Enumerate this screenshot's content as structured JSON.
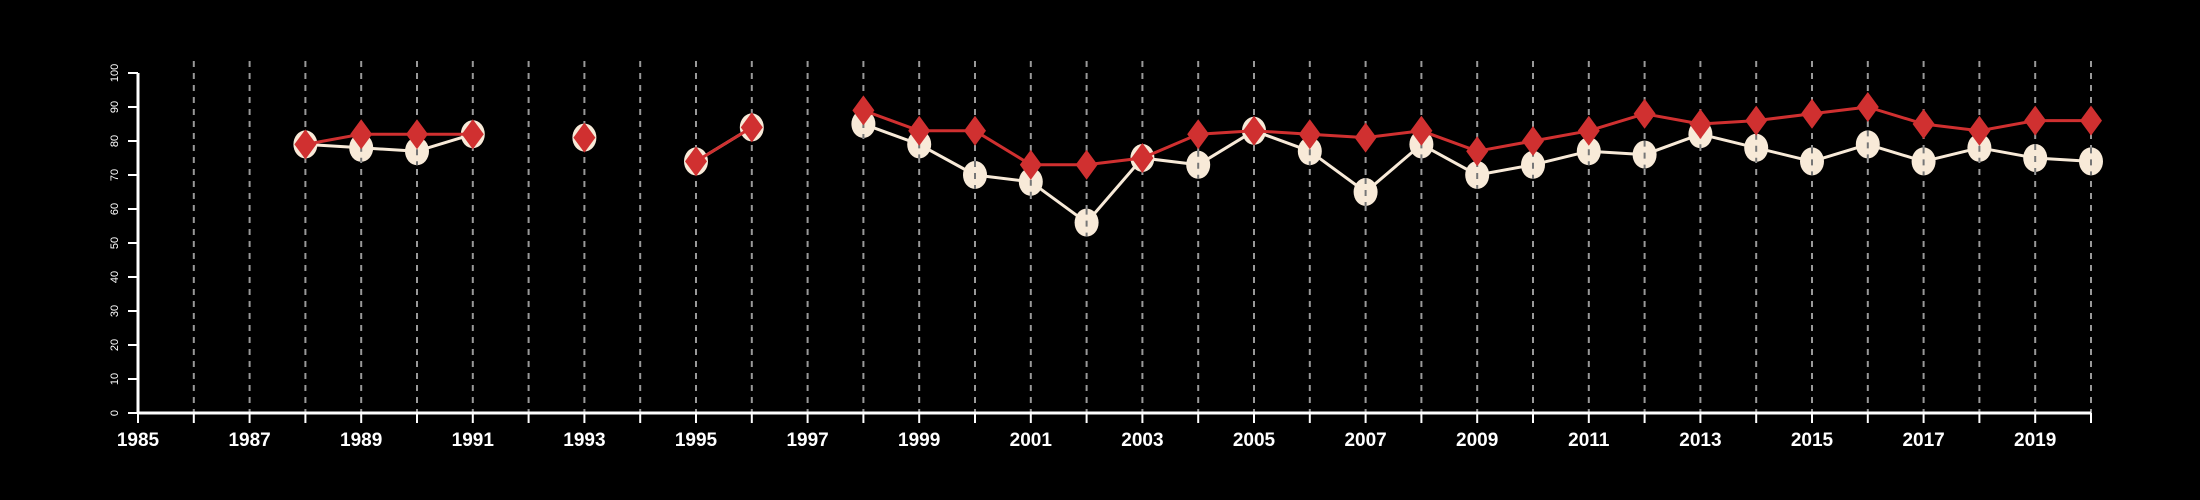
{
  "chart_data": {
    "type": "line",
    "title": "",
    "xlabel": "",
    "ylabel": "",
    "xlim": [
      1985,
      2020
    ],
    "ylim": [
      0,
      100
    ],
    "grid": "vertical dashed at every year",
    "x_tick_labels": [
      "1985",
      "1987",
      "1989",
      "1991",
      "1993",
      "1995",
      "1997",
      "1999",
      "2001",
      "2003",
      "2005",
      "2007",
      "2009",
      "2011",
      "2013",
      "2015",
      "2017",
      "2019"
    ],
    "y_tick_labels": [
      "0",
      "10",
      "20",
      "30",
      "40",
      "50",
      "60",
      "70",
      "80",
      "90",
      "100"
    ],
    "x": [
      1988,
      1989,
      1990,
      1991,
      1993,
      1995,
      1996,
      1998,
      1999,
      2000,
      2001,
      2002,
      2003,
      2004,
      2005,
      2006,
      2007,
      2008,
      2009,
      2010,
      2011,
      2012,
      2013,
      2014,
      2015,
      2016,
      2017,
      2018,
      2019,
      2020
    ],
    "series": [
      {
        "name": "series-circle",
        "color": "#f8ead8",
        "marker": "circle",
        "values": [
          79,
          78,
          77,
          82,
          81,
          74,
          84,
          85,
          79,
          70,
          68,
          56,
          75,
          73,
          83,
          77,
          65,
          79,
          70,
          73,
          77,
          76,
          82,
          78,
          74,
          79,
          74,
          78,
          75,
          74
        ]
      },
      {
        "name": "series-diamond",
        "color": "#d03030",
        "marker": "diamond",
        "values": [
          79,
          82,
          82,
          82,
          81,
          74,
          84,
          89,
          83,
          83,
          73,
          73,
          75,
          82,
          83,
          82,
          81,
          83,
          77,
          80,
          83,
          88,
          85,
          86,
          88,
          90,
          85,
          83,
          86,
          86
        ]
      }
    ]
  }
}
